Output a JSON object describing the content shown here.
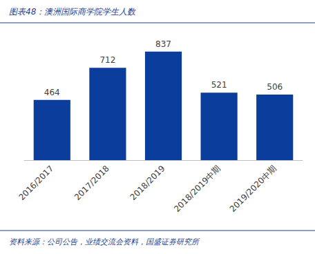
{
  "chart_data": {
    "type": "bar",
    "title": "图表48：澳洲国际商学院学生人数",
    "source": "资料来源：公司公告，业绩交流会资料，国盛证券研究所",
    "categories": [
      "2016/2017",
      "2017/2018",
      "2018/2019",
      "2018/2019中期",
      "2019/2020中期"
    ],
    "values": [
      464,
      712,
      837,
      521,
      506
    ],
    "color": "#0a3d9c",
    "ylim": [
      0,
      900
    ],
    "grid": false,
    "data_labels": true,
    "tick_labels": "x"
  }
}
